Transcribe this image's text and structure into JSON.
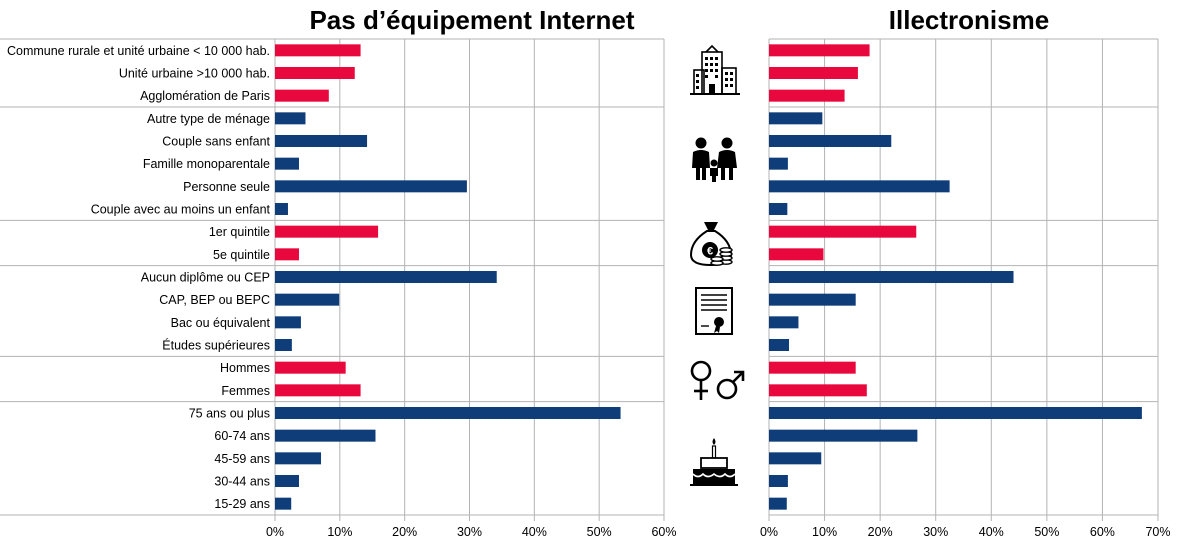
{
  "colors": {
    "red": "#e8083e",
    "blue": "#0f3d7a",
    "grid": "#b3b3b3",
    "icon": "#000000"
  },
  "group_icons": [
    "city-buildings-icon",
    "family-icon",
    "money-bag-icon",
    "diploma-icon",
    "gender-symbols-icon",
    "birthday-cake-icon"
  ],
  "chart_data": [
    {
      "type": "bar",
      "orientation": "horizontal",
      "title": "Pas d’équipement Internet",
      "categories": [
        "Commune rurale et unité urbaine < 10 000 hab.",
        "Unité urbaine >10 000 hab.",
        "Agglomération de Paris",
        "Autre type de ménage",
        "Couple sans enfant",
        "Famille monoparentale",
        "Personne seule",
        "Couple avec au moins un enfant",
        "1er quintile",
        "5e quintile",
        "Aucun diplôme ou CEP",
        "CAP, BEP ou BEPC",
        "Bac ou équivalent",
        "Études supérieures",
        "Hommes",
        "Femmes",
        "75 ans ou plus",
        "60-74 ans",
        "45-59 ans",
        "30-44 ans",
        "15-29 ans"
      ],
      "values": [
        13.2,
        12.3,
        8.3,
        4.7,
        14.2,
        3.7,
        29.6,
        2.0,
        15.9,
        3.7,
        34.2,
        9.9,
        4.0,
        2.6,
        10.9,
        13.2,
        53.3,
        15.5,
        7.1,
        3.7,
        2.5
      ],
      "bar_colors": [
        "red",
        "red",
        "red",
        "blue",
        "blue",
        "blue",
        "blue",
        "blue",
        "red",
        "red",
        "blue",
        "blue",
        "blue",
        "blue",
        "red",
        "red",
        "blue",
        "blue",
        "blue",
        "blue",
        "blue"
      ],
      "group_breaks": [
        3,
        8,
        10,
        14,
        16
      ],
      "xlim": [
        0,
        60
      ],
      "xticks": [
        "0%",
        "10%",
        "20%",
        "30%",
        "40%",
        "50%",
        "60%"
      ],
      "grid": true
    },
    {
      "type": "bar",
      "orientation": "horizontal",
      "title": "Illectronisme",
      "categories": [
        "Commune rurale et unité urbaine < 10 000 hab.",
        "Unité urbaine >10 000 hab.",
        "Agglomération de Paris",
        "Autre type de ménage",
        "Couple sans enfant",
        "Famille monoparentale",
        "Personne seule",
        "Couple avec au moins un enfant",
        "1er quintile",
        "5e quintile",
        "Aucun diplôme ou CEP",
        "CAP, BEP ou BEPC",
        "Bac ou équivalent",
        "Études supérieures",
        "Hommes",
        "Femmes",
        "75 ans ou plus",
        "60-74 ans",
        "45-59 ans",
        "30-44 ans",
        "15-29 ans"
      ],
      "values": [
        18.1,
        16.0,
        13.6,
        9.6,
        22.0,
        3.4,
        32.5,
        3.3,
        26.5,
        9.8,
        44.0,
        15.6,
        5.3,
        3.6,
        15.6,
        17.6,
        67.1,
        26.7,
        9.4,
        3.4,
        3.2
      ],
      "bar_colors": [
        "red",
        "red",
        "red",
        "blue",
        "blue",
        "blue",
        "blue",
        "blue",
        "red",
        "red",
        "blue",
        "blue",
        "blue",
        "blue",
        "red",
        "red",
        "blue",
        "blue",
        "blue",
        "blue",
        "blue"
      ],
      "group_breaks": [
        3,
        8,
        10,
        14,
        16
      ],
      "xlim": [
        0,
        70
      ],
      "xticks": [
        "0%",
        "10%",
        "20%",
        "30%",
        "40%",
        "50%",
        "60%",
        "70%"
      ],
      "grid": true
    }
  ]
}
